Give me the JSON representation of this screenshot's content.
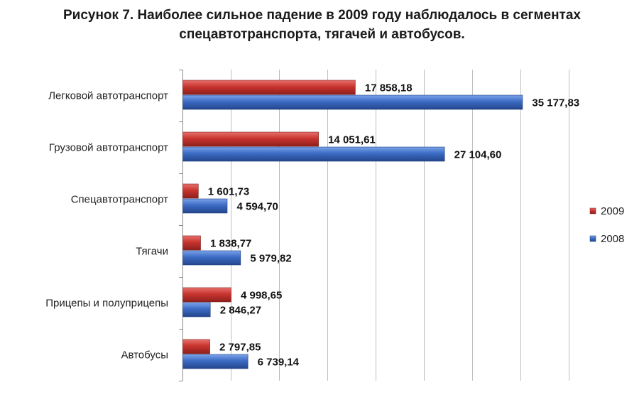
{
  "chart_data": {
    "type": "bar",
    "orientation": "horizontal",
    "title_line1": "Рисунок 7. Наиболее сильное падение в 2009 году наблюдалось в сегментах",
    "title_line2": "спецавтотранспорта, тягачей и автобусов.",
    "categories": [
      "Легковой автотранспорт",
      "Грузовой автотранспорт",
      "Спецавтотранспорт",
      "Тягачи",
      "Прицепы и полуприцепы",
      "Автобусы"
    ],
    "series": [
      {
        "name": "2009",
        "color": "#c0302c",
        "values": [
          17858.18,
          14051.61,
          1601.73,
          1838.77,
          4998.65,
          2797.85
        ],
        "labels": [
          "17 858,18",
          "14 051,61",
          "1 601,73",
          "1 838,77",
          "4 998,65",
          "2 797,85"
        ]
      },
      {
        "name": "2008",
        "color": "#3b6bc4",
        "values": [
          35177.83,
          27104.6,
          4594.7,
          5979.82,
          2846.27,
          6739.14
        ],
        "labels": [
          "35 177,83",
          "27 104,60",
          "4 594,70",
          "5 979,82",
          "2 846,27",
          "6 739,14"
        ]
      }
    ],
    "xlim": [
      0,
      40000
    ],
    "grid": true,
    "legend": "right"
  }
}
